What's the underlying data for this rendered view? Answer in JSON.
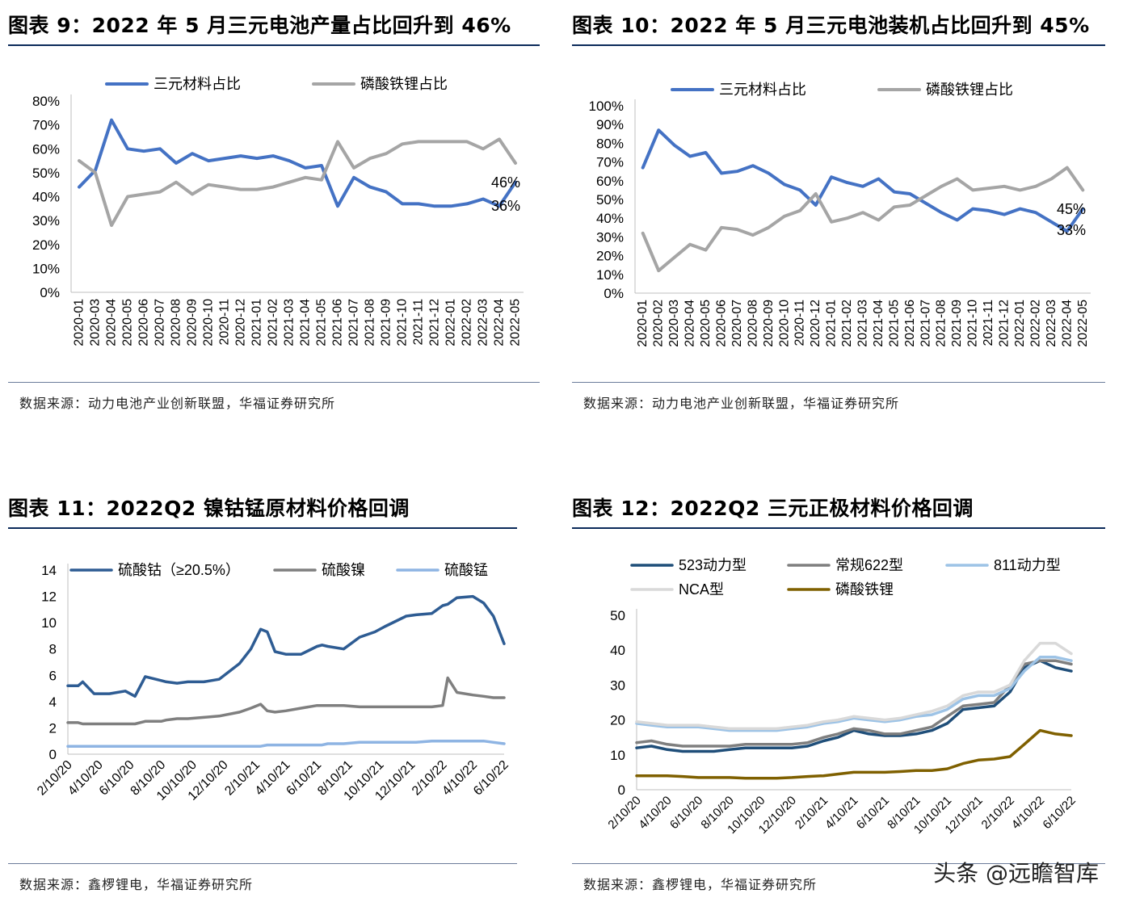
{
  "watermark": "头条 @远瞻智库",
  "panels": [
    {
      "title": "图表 9：2022 年 5 月三元电池产量占比回升到 46%",
      "source": "数据来源：动力电池产业创新联盟，华福证券研究所"
    },
    {
      "title": "图表 10：2022 年 5 月三元电池装机占比回升到 45%",
      "source": "数据来源：动力电池产业创新联盟，华福证券研究所"
    },
    {
      "title": "图表 11：2022Q2 镍钴锰原材料价格回调",
      "source": "数据来源：鑫椤锂电，华福证券研究所"
    },
    {
      "title": "图表 12：2022Q2 三元正极材料价格回调",
      "source": "数据来源：鑫椤锂电，华福证券研究所"
    }
  ],
  "chart_data": [
    {
      "type": "line",
      "title": "图表 9：2022 年 5 月三元电池产量占比回升到 46%",
      "categories": [
        "2020-01",
        "2020-03",
        "2020-04",
        "2020-05",
        "2020-06",
        "2020-07",
        "2020-08",
        "2020-09",
        "2020-10",
        "2020-11",
        "2020-12",
        "2021-01",
        "2021-02",
        "2021-03",
        "2021-04",
        "2021-05",
        "2021-06",
        "2021-07",
        "2021-08",
        "2021-09",
        "2021-10",
        "2021-11",
        "2021-12",
        "2022-01",
        "2022-02",
        "2022-03",
        "2022-04",
        "2022-05"
      ],
      "series": [
        {
          "name": "三元材料占比",
          "color": "#4472c4",
          "values": [
            44,
            51,
            72,
            60,
            59,
            60,
            54,
            58,
            55,
            56,
            57,
            56,
            57,
            55,
            52,
            53,
            36,
            48,
            44,
            42,
            37,
            37,
            36,
            36,
            37,
            39,
            36,
            46
          ]
        },
        {
          "name": "磷酸铁锂占比",
          "color": "#a5a5a5",
          "values": [
            55,
            50,
            28,
            40,
            41,
            42,
            46,
            41,
            45,
            44,
            43,
            43,
            44,
            46,
            48,
            47,
            63,
            52,
            56,
            58,
            62,
            63,
            63,
            63,
            63,
            60,
            64,
            54
          ]
        }
      ],
      "ylim": [
        0,
        80
      ],
      "yticks": [
        "0%",
        "10%",
        "20%",
        "30%",
        "40%",
        "50%",
        "60%",
        "70%",
        "80%"
      ],
      "annotations": [
        "46%",
        "36%"
      ],
      "legend": "top"
    },
    {
      "type": "line",
      "title": "图表 10：2022 年 5 月三元电池装机占比回升到 45%",
      "categories": [
        "2020-01",
        "2020-02",
        "2020-03",
        "2020-04",
        "2020-05",
        "2020-06",
        "2020-07",
        "2020-08",
        "2020-09",
        "2020-10",
        "2020-11",
        "2020-12",
        "2021-01",
        "2021-02",
        "2021-03",
        "2021-04",
        "2021-05",
        "2021-06",
        "2021-07",
        "2021-08",
        "2021-09",
        "2021-10",
        "2021-11",
        "2021-12",
        "2022-01",
        "2022-02",
        "2022-03",
        "2022-04",
        "2022-05"
      ],
      "series": [
        {
          "name": "三元材料占比",
          "color": "#4472c4",
          "values": [
            67,
            87,
            79,
            73,
            75,
            64,
            65,
            68,
            64,
            58,
            55,
            47,
            62,
            59,
            57,
            61,
            54,
            53,
            48,
            43,
            39,
            45,
            44,
            42,
            45,
            43,
            38,
            33,
            45
          ]
        },
        {
          "name": "磷酸铁锂占比",
          "color": "#a5a5a5",
          "values": [
            32,
            12,
            19,
            26,
            23,
            35,
            34,
            31,
            35,
            41,
            44,
            53,
            38,
            40,
            43,
            39,
            46,
            47,
            52,
            57,
            61,
            55,
            56,
            57,
            55,
            57,
            61,
            67,
            55
          ]
        }
      ],
      "ylim": [
        0,
        100
      ],
      "yticks": [
        "0%",
        "10%",
        "20%",
        "30%",
        "40%",
        "50%",
        "60%",
        "70%",
        "80%",
        "90%",
        "100%"
      ],
      "annotations": [
        "45%",
        "33%"
      ],
      "legend": "top"
    },
    {
      "type": "line",
      "title": "图表 11：2022Q2 镍钴锰原材料价格回调",
      "x": [
        "2020-02-10",
        "2020-03-01",
        "2020-03-10",
        "2020-04-01",
        "2020-05-01",
        "2020-06-01",
        "2020-06-20",
        "2020-07-10",
        "2020-08-10",
        "2020-08-20",
        "2020-09-10",
        "2020-10-01",
        "2020-11-01",
        "2020-12-01",
        "2021-01-10",
        "2021-02-01",
        "2021-02-20",
        "2021-03-05",
        "2021-03-20",
        "2021-04-10",
        "2021-05-10",
        "2021-06-10",
        "2021-06-20",
        "2021-07-01",
        "2021-08-01",
        "2021-09-01",
        "2021-10-01",
        "2021-10-20",
        "2021-11-10",
        "2021-12-01",
        "2021-12-20",
        "2022-01-20",
        "2022-02-10",
        "2022-02-20",
        "2022-03-10",
        "2022-04-10",
        "2022-05-01",
        "2022-05-20",
        "2022-06-10"
      ],
      "x_tick_labels": [
        "2/10/20",
        "4/10/20",
        "6/10/20",
        "8/10/20",
        "10/10/20",
        "12/10/20",
        "2/10/21",
        "4/10/21",
        "6/10/21",
        "8/10/21",
        "10/10/21",
        "12/10/21",
        "2/10/22",
        "4/10/22",
        "6/10/22"
      ],
      "series": [
        {
          "name": "硫酸钴（≥20.5%）",
          "color": "#2e5c93",
          "values": [
            5.2,
            5.2,
            5.5,
            4.6,
            4.6,
            4.8,
            4.4,
            5.9,
            5.6,
            5.5,
            5.4,
            5.5,
            5.5,
            5.7,
            6.9,
            8.0,
            9.5,
            9.3,
            7.8,
            7.6,
            7.6,
            8.2,
            8.3,
            8.2,
            8.0,
            8.9,
            9.3,
            9.7,
            10.1,
            10.5,
            10.6,
            10.7,
            11.3,
            11.4,
            11.9,
            12.0,
            11.5,
            10.5,
            8.4
          ]
        },
        {
          "name": "硫酸镍",
          "color": "#7f7f7f",
          "values": [
            2.4,
            2.4,
            2.3,
            2.3,
            2.3,
            2.3,
            2.3,
            2.5,
            2.5,
            2.6,
            2.7,
            2.7,
            2.8,
            2.9,
            3.2,
            3.5,
            3.8,
            3.3,
            3.2,
            3.3,
            3.5,
            3.7,
            3.7,
            3.7,
            3.7,
            3.6,
            3.6,
            3.6,
            3.6,
            3.6,
            3.6,
            3.6,
            3.7,
            5.8,
            4.7,
            4.5,
            4.4,
            4.3,
            4.3
          ]
        },
        {
          "name": "硫酸锰",
          "color": "#8eb4e3",
          "values": [
            0.6,
            0.6,
            0.6,
            0.6,
            0.6,
            0.6,
            0.6,
            0.6,
            0.6,
            0.6,
            0.6,
            0.6,
            0.6,
            0.6,
            0.6,
            0.6,
            0.6,
            0.7,
            0.7,
            0.7,
            0.7,
            0.7,
            0.7,
            0.8,
            0.8,
            0.9,
            0.9,
            0.9,
            0.9,
            0.9,
            0.9,
            1.0,
            1.0,
            1.0,
            1.0,
            1.0,
            1.0,
            0.9,
            0.8
          ]
        }
      ],
      "ylim": [
        0,
        14
      ],
      "yticks": [
        "0",
        "2",
        "4",
        "6",
        "8",
        "10",
        "12",
        "14"
      ],
      "legend": "top"
    },
    {
      "type": "line",
      "title": "图表 12：2022Q2 三元正极材料价格回调",
      "x": [
        "2020-02-10",
        "2020-03-10",
        "2020-04-10",
        "2020-05-10",
        "2020-06-10",
        "2020-07-10",
        "2020-08-10",
        "2020-09-10",
        "2020-10-10",
        "2020-11-10",
        "2020-12-10",
        "2021-01-10",
        "2021-02-10",
        "2021-03-10",
        "2021-04-10",
        "2021-05-10",
        "2021-06-10",
        "2021-07-10",
        "2021-08-10",
        "2021-09-10",
        "2021-10-10",
        "2021-11-10",
        "2021-12-10",
        "2022-01-10",
        "2022-02-10",
        "2022-03-10",
        "2022-04-10",
        "2022-05-10",
        "2022-06-10"
      ],
      "x_tick_labels": [
        "2/10/20",
        "4/10/20",
        "6/10/20",
        "8/10/20",
        "10/10/20",
        "12/10/20",
        "2/10/21",
        "4/10/21",
        "6/10/21",
        "8/10/21",
        "10/10/21",
        "12/10/21",
        "2/10/22",
        "4/10/22",
        "6/10/22"
      ],
      "series": [
        {
          "name": "523动力型",
          "color": "#1f4e79",
          "values": [
            12,
            12.5,
            11.5,
            11,
            11,
            11,
            11.5,
            12,
            12,
            12,
            12,
            12.5,
            14,
            15,
            17,
            16,
            15.5,
            15.5,
            16,
            17,
            19,
            23,
            23.5,
            24,
            28,
            35,
            37,
            35,
            34
          ]
        },
        {
          "name": "常规622型",
          "color": "#7f7f7f",
          "values": [
            13.5,
            14,
            13,
            12.5,
            12.5,
            12.5,
            12.5,
            13,
            13,
            13,
            13,
            13.5,
            15,
            16,
            17.5,
            17,
            16,
            16,
            17,
            18,
            21,
            24,
            24.5,
            25,
            30,
            36,
            37,
            37,
            36
          ]
        },
        {
          "name": "811动力型",
          "color": "#9dc3e6",
          "values": [
            19,
            18.5,
            18,
            18,
            18,
            17.5,
            17,
            17,
            17,
            17,
            17.5,
            18,
            19,
            19.5,
            20.5,
            20,
            19.5,
            20,
            21,
            21.5,
            23,
            26,
            27,
            27,
            29,
            34,
            38,
            38,
            37
          ]
        },
        {
          "name": "NCA型",
          "color": "#d9d9d9",
          "values": [
            19.5,
            19,
            18.5,
            18.5,
            18.5,
            18,
            17.5,
            17.5,
            17.5,
            17.5,
            18,
            18.5,
            19.5,
            20,
            21,
            20.5,
            20,
            20.5,
            21.5,
            22.5,
            24,
            27,
            28,
            28,
            30,
            37,
            42,
            42,
            39
          ]
        },
        {
          "name": "磷酸铁锂",
          "color": "#7f6000",
          "values": [
            4,
            4,
            4,
            3.8,
            3.5,
            3.5,
            3.5,
            3.3,
            3.3,
            3.3,
            3.5,
            3.8,
            4,
            4.5,
            5,
            5,
            5,
            5.2,
            5.5,
            5.5,
            6,
            7.5,
            8.5,
            8.8,
            9.5,
            13,
            17,
            16,
            15.5
          ]
        }
      ],
      "ylim": [
        0,
        50
      ],
      "yticks": [
        "0",
        "10",
        "20",
        "30",
        "40",
        "50"
      ],
      "legend": "top"
    }
  ]
}
